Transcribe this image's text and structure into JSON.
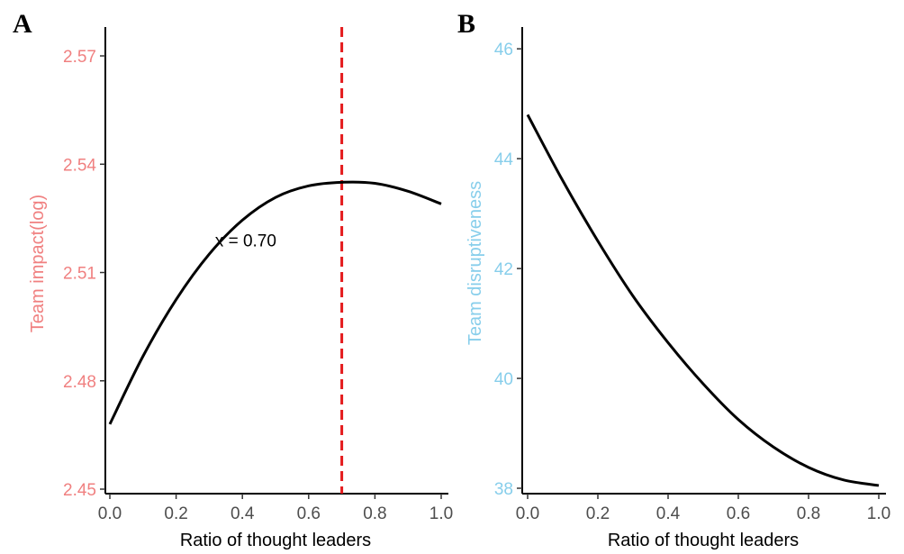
{
  "chart_data": [
    {
      "type": "line",
      "panel_label": "A",
      "xlabel": "Ratio of thought leaders",
      "ylabel": "Team impact(log)",
      "ylabel_color": "#F08080",
      "xlim": [
        0.0,
        1.0
      ],
      "ylim": [
        2.45,
        2.575
      ],
      "x_ticks": [
        0.0,
        0.2,
        0.4,
        0.6,
        0.8,
        1.0
      ],
      "x_tick_labels": [
        "0.0",
        "0.2",
        "0.4",
        "0.6",
        "0.8",
        "1.0"
      ],
      "y_ticks": [
        2.45,
        2.48,
        2.51,
        2.54,
        2.57
      ],
      "y_tick_labels": [
        "2.45",
        "2.48",
        "2.51",
        "2.54",
        "2.57"
      ],
      "tick_label_color_y": "#F08080",
      "tick_label_color_x": "#4D4D4D",
      "grid": false,
      "series": [
        {
          "color": "#000000",
          "x": [
            0.0,
            0.1,
            0.2,
            0.3,
            0.4,
            0.5,
            0.6,
            0.7,
            0.8,
            0.9,
            1.0
          ],
          "y": [
            2.468,
            2.4868,
            2.5025,
            2.5151,
            2.5245,
            2.5308,
            2.534,
            2.535,
            2.5347,
            2.5325,
            2.529
          ]
        }
      ],
      "vline": {
        "x": 0.7,
        "color": "#E41A1C",
        "style": "dashed"
      },
      "annotation": {
        "text": "x = 0.70",
        "x": 0.41,
        "y": 2.519
      }
    },
    {
      "type": "line",
      "panel_label": "B",
      "xlabel": "Ratio of thought leaders",
      "ylabel": "Team disruptiveness",
      "ylabel_color": "#87CEEB",
      "xlim": [
        0.0,
        1.0
      ],
      "ylim": [
        38.0,
        46.2
      ],
      "x_ticks": [
        0.0,
        0.2,
        0.4,
        0.6,
        0.8,
        1.0
      ],
      "x_tick_labels": [
        "0.0",
        "0.2",
        "0.4",
        "0.6",
        "0.8",
        "1.0"
      ],
      "y_ticks": [
        38,
        40,
        42,
        44,
        46
      ],
      "y_tick_labels": [
        "38",
        "40",
        "42",
        "44",
        "46"
      ],
      "tick_label_color_y": "#87CEEB",
      "tick_label_color_x": "#4D4D4D",
      "grid": false,
      "series": [
        {
          "color": "#000000",
          "x": [
            0.0,
            0.1,
            0.2,
            0.3,
            0.4,
            0.5,
            0.6,
            0.7,
            0.8,
            0.9,
            1.0
          ],
          "y": [
            44.8,
            43.6,
            42.5,
            41.5,
            40.65,
            39.9,
            39.25,
            38.75,
            38.38,
            38.15,
            38.05
          ]
        }
      ]
    }
  ]
}
